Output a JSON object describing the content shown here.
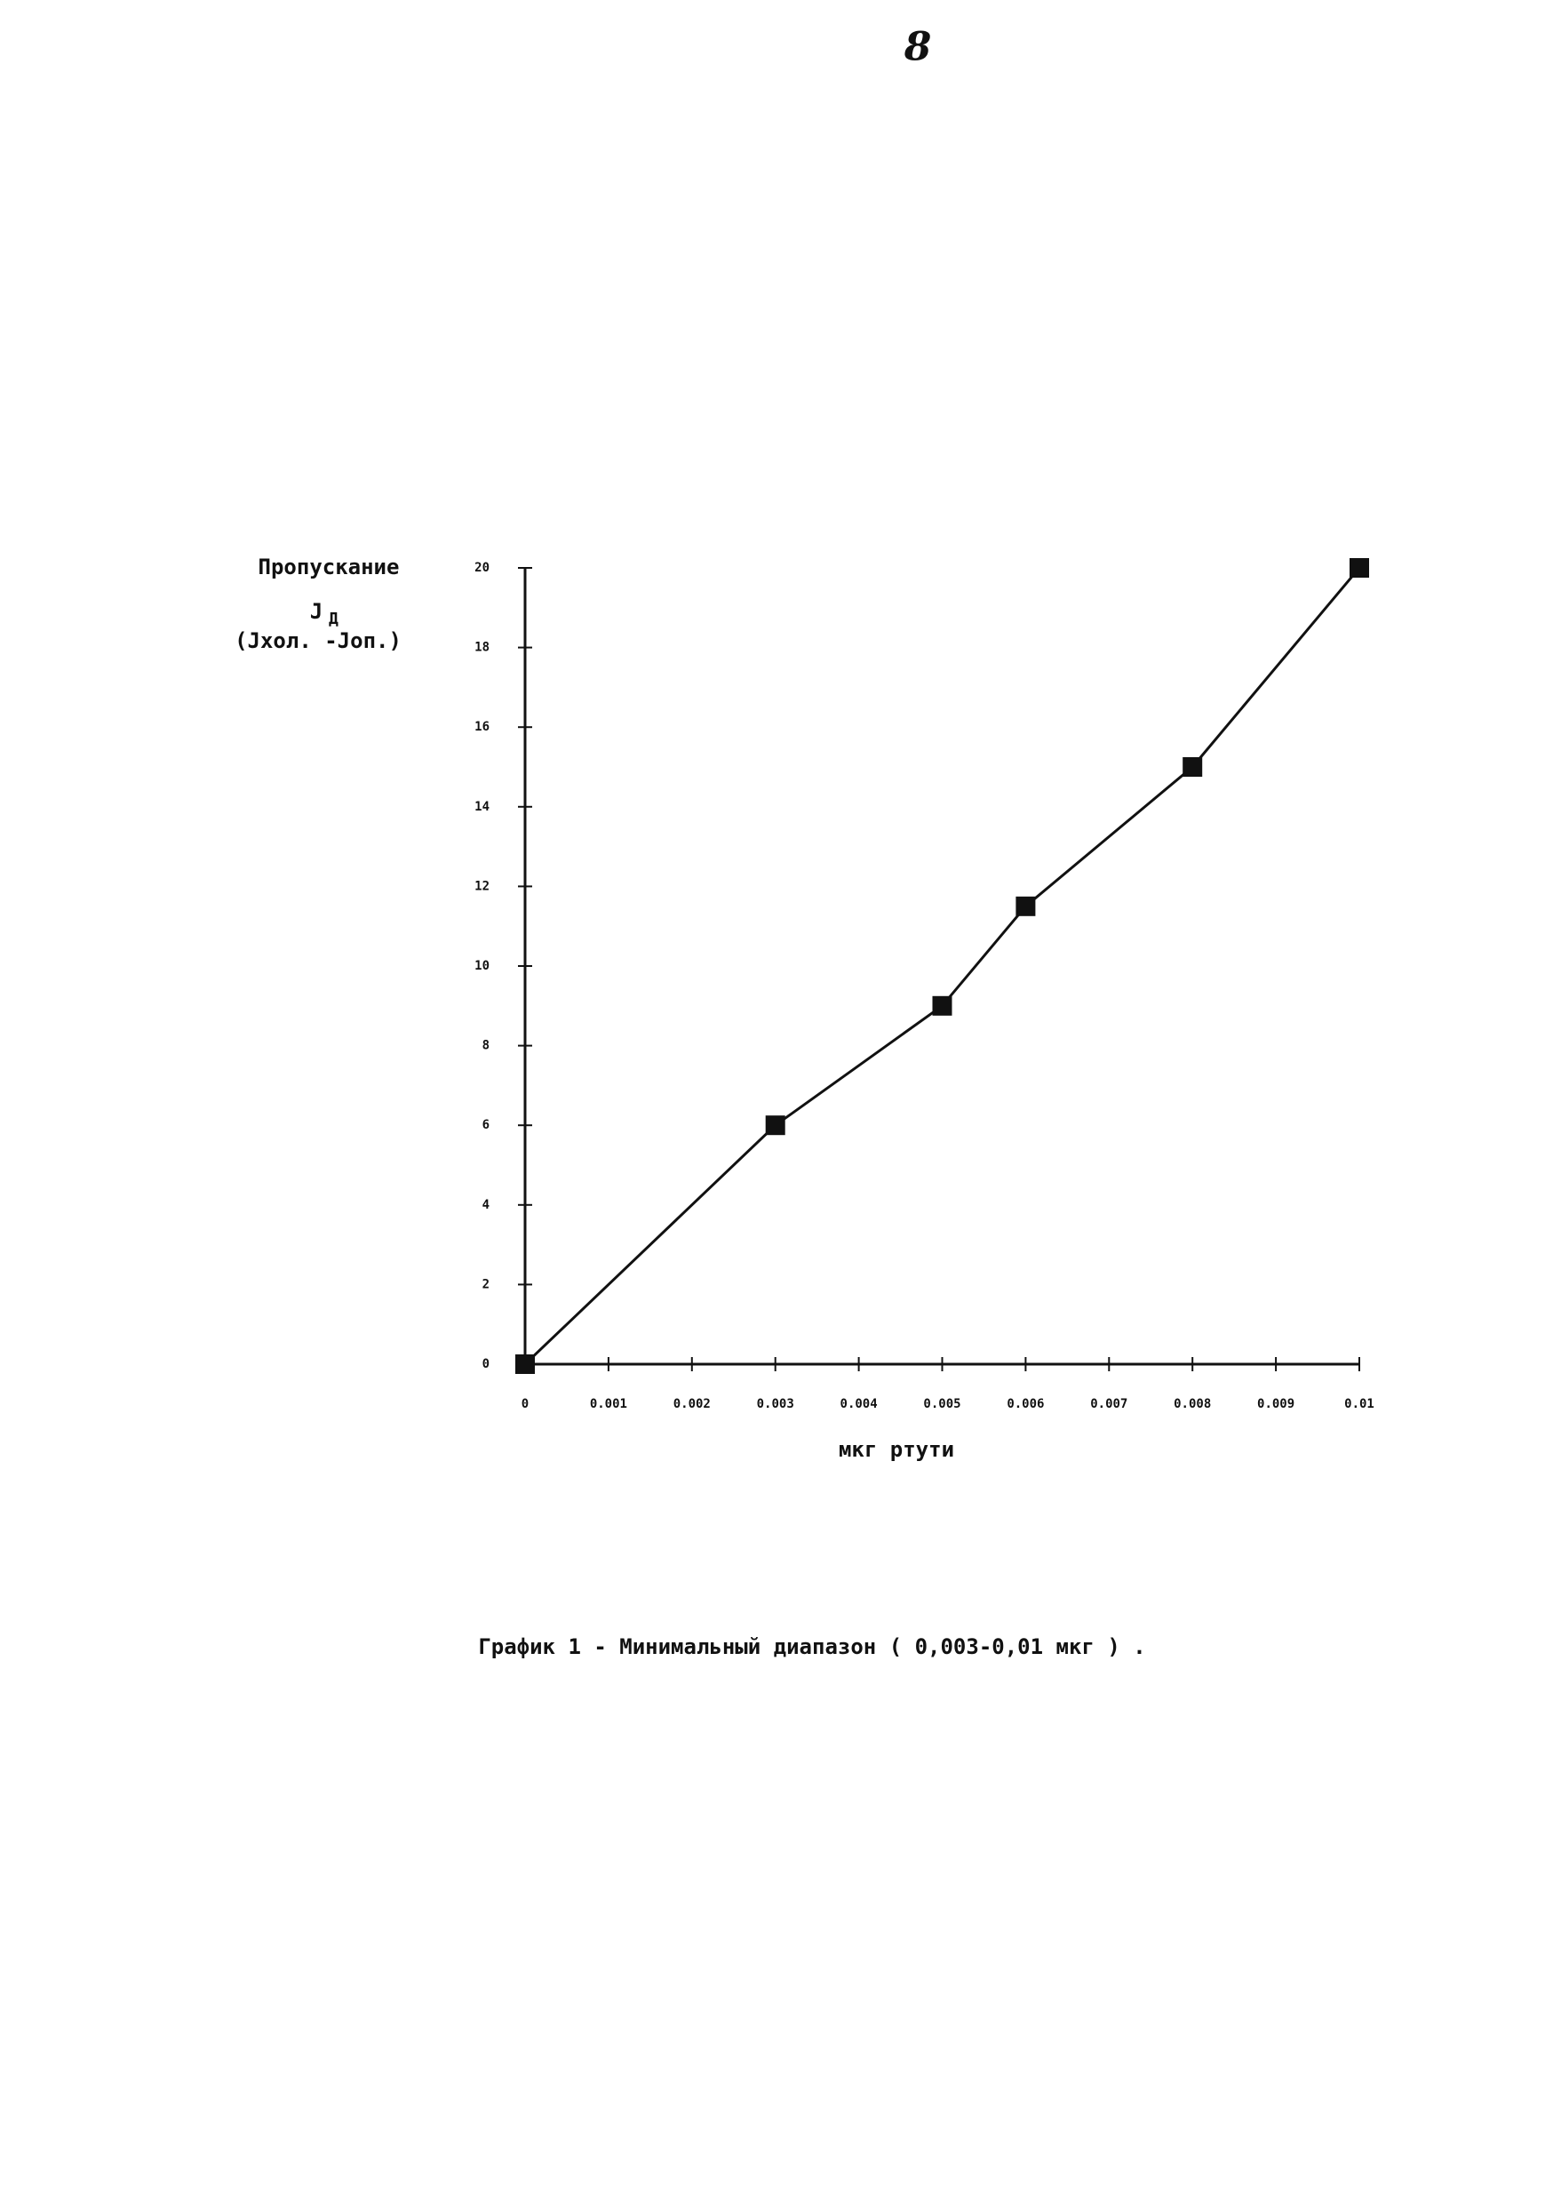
{
  "chart_data": {
    "type": "line",
    "page_number": "8",
    "y_label": {
      "line1": "Пропускание",
      "symbol": "J",
      "subscript": "Д",
      "line3": "(Jхол. -Jоп.)"
    },
    "x_label": "мкг ртути",
    "caption": "График 1 -  Минимальный диапазон ( 0,003-0,01 мкг ) .",
    "x": [
      0,
      0.003,
      0.005,
      0.006,
      0.008,
      0.01
    ],
    "values": [
      0,
      6,
      9,
      11.5,
      15,
      20
    ],
    "color": "#111111",
    "marker": "square",
    "xlim": [
      0,
      0.01
    ],
    "ylim": [
      0,
      20
    ],
    "xticks": [
      0,
      0.001,
      0.002,
      0.003,
      0.004,
      0.005,
      0.006,
      0.007,
      0.008,
      0.009,
      0.01
    ],
    "yticks": [
      0,
      2,
      4,
      6,
      8,
      10,
      12,
      14,
      16,
      18,
      20
    ],
    "grid": false
  }
}
